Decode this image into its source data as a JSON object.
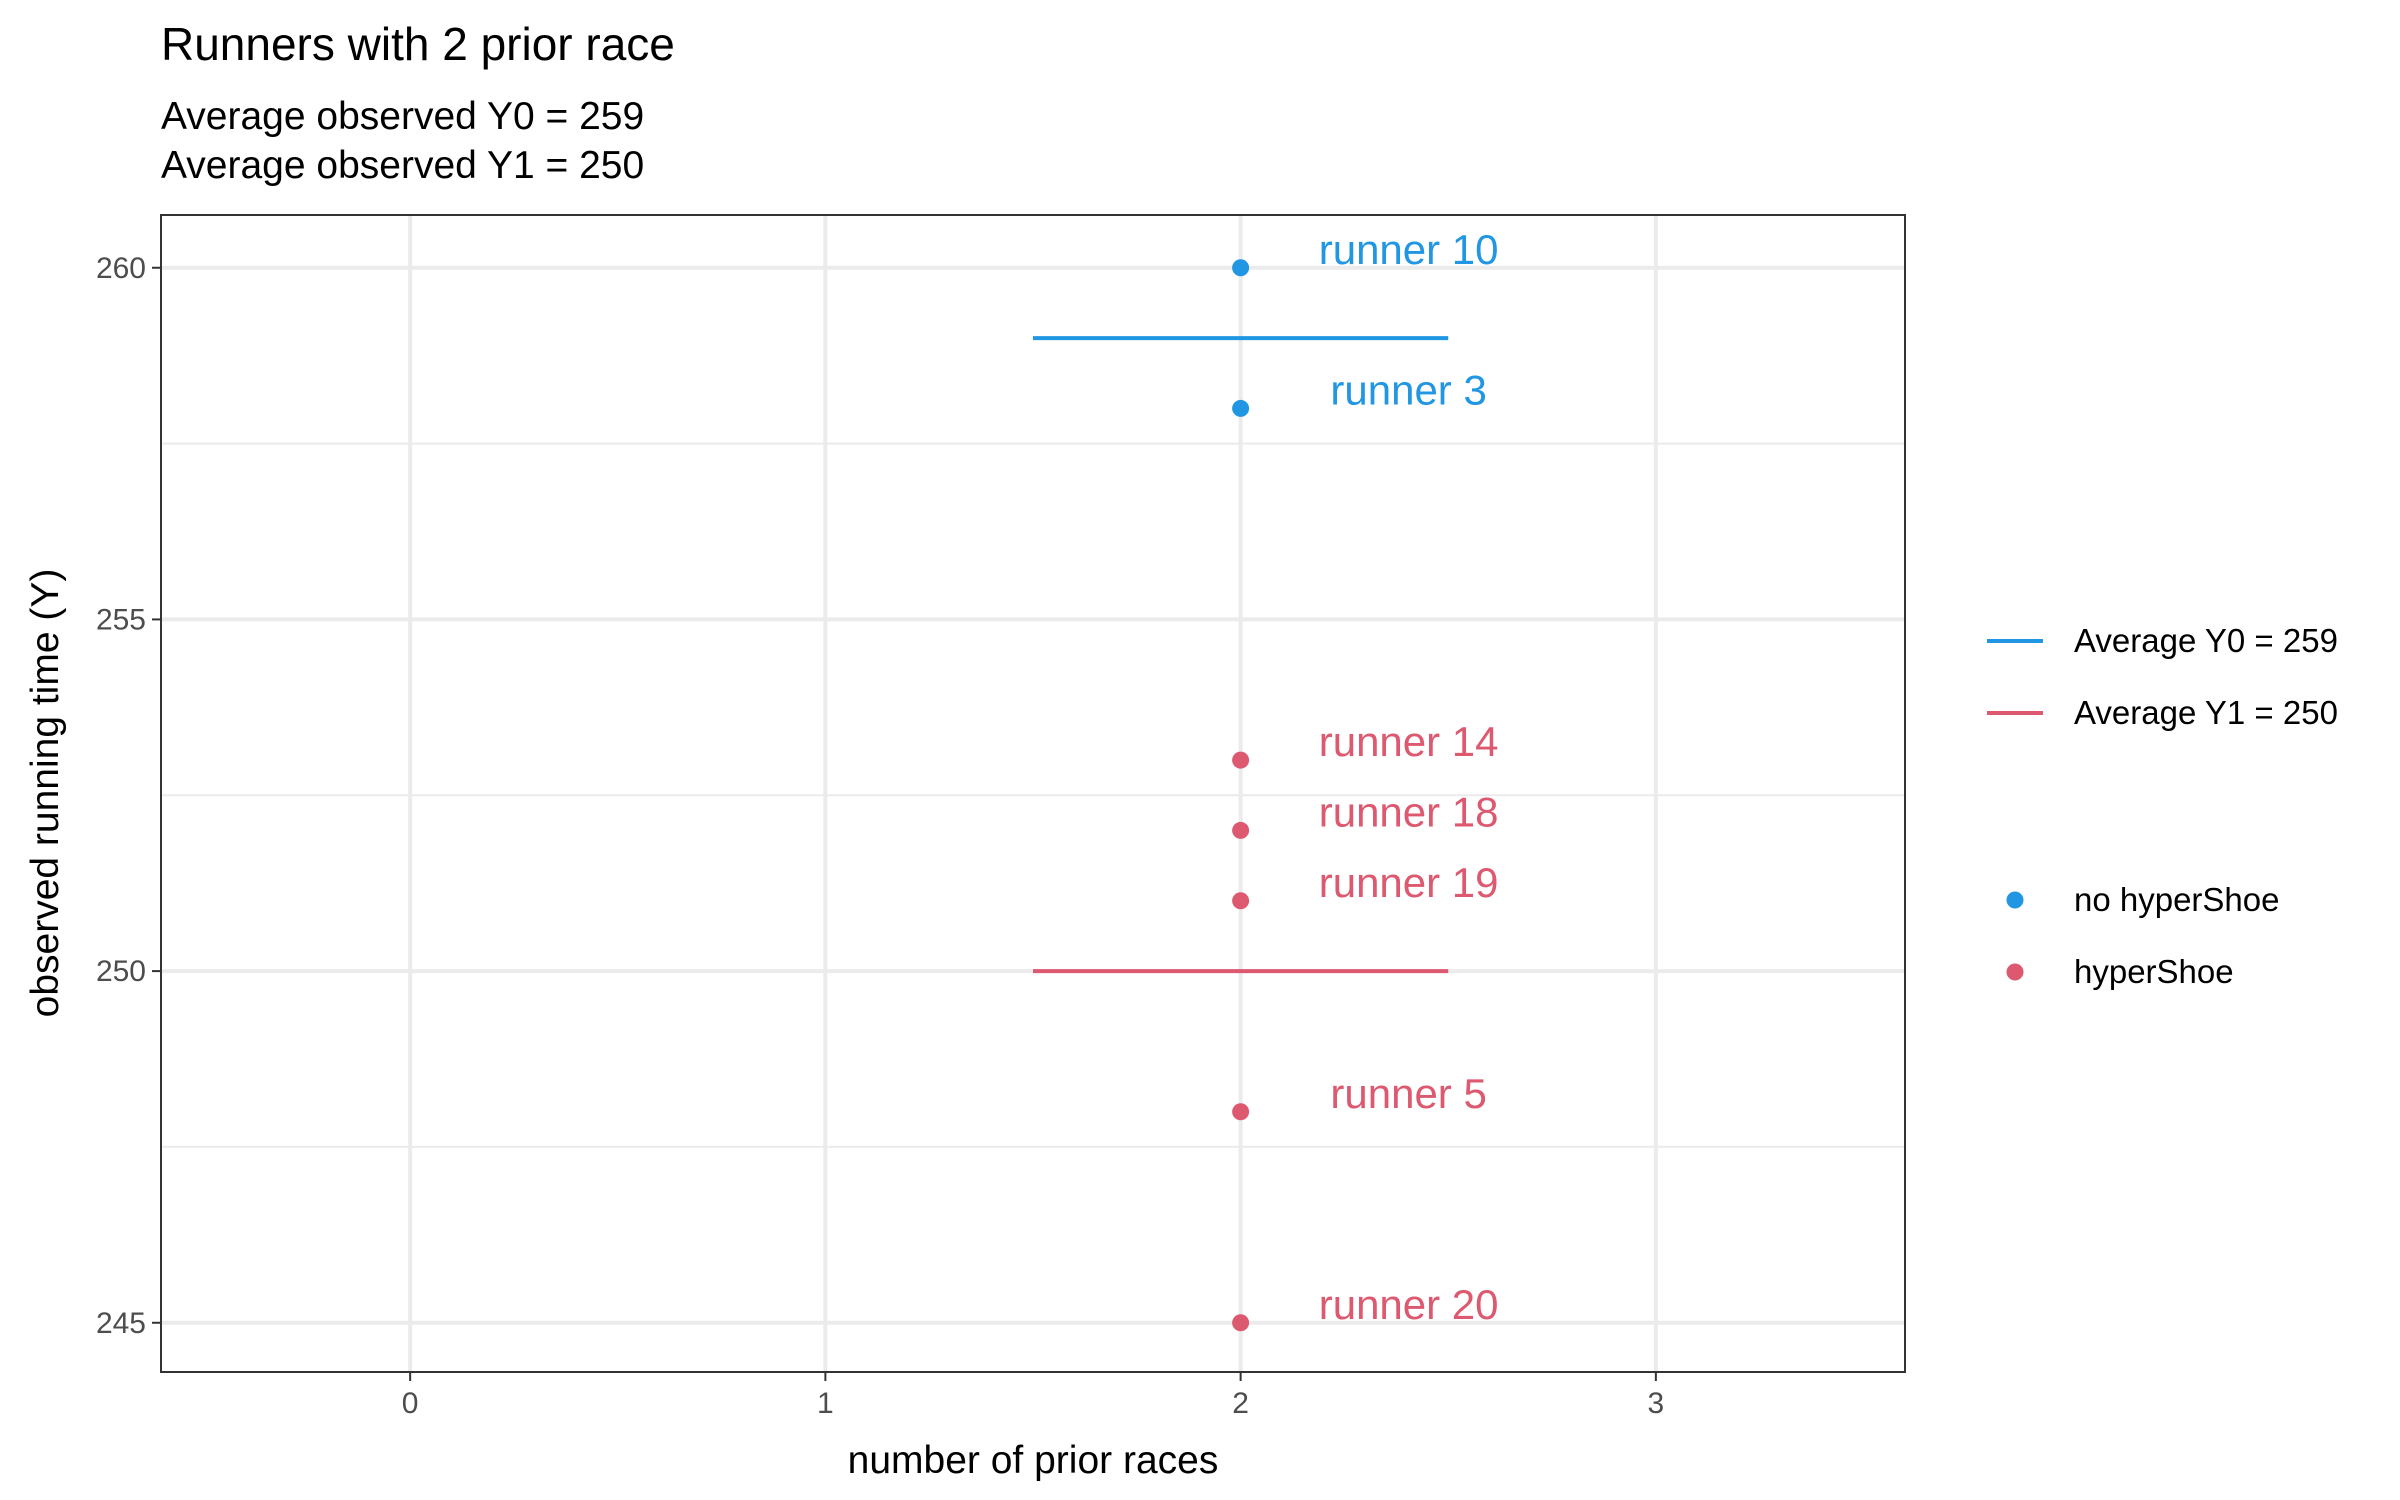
{
  "chart_data": {
    "type": "scatter",
    "title": "Runners with 2 prior race",
    "subtitle_lines": [
      "Average observed Y0 = 259",
      "Average observed Y1 = 250"
    ],
    "xlabel": "number of prior races",
    "ylabel": "observed running time (Y)",
    "xlim": [
      -0.6,
      3.6
    ],
    "ylim": [
      244.3,
      260.75
    ],
    "x_ticks": [
      0,
      1,
      2,
      3
    ],
    "y_ticks": [
      245,
      250,
      255,
      260
    ],
    "y_minor": [
      247.5,
      252.5,
      257.5
    ],
    "x_minor": [],
    "grid": true,
    "colors": {
      "no_hypershoe": "#2196e3",
      "hypershoe": "#dc5970"
    },
    "series": [
      {
        "name": "no hyperShoe",
        "color_key": "no_hypershoe",
        "points": [
          {
            "x": 2,
            "y": 260,
            "label": "runner 10"
          },
          {
            "x": 2,
            "y": 258,
            "label": "runner 3"
          }
        ]
      },
      {
        "name": "hyperShoe",
        "color_key": "hypershoe",
        "points": [
          {
            "x": 2,
            "y": 253,
            "label": "runner 14"
          },
          {
            "x": 2,
            "y": 252,
            "label": "runner 18"
          },
          {
            "x": 2,
            "y": 251,
            "label": "runner 19"
          },
          {
            "x": 2,
            "y": 248,
            "label": "runner 5"
          },
          {
            "x": 2,
            "y": 245,
            "label": "runner 20"
          }
        ]
      }
    ],
    "mean_lines": [
      {
        "name": "Average Y0 = 259",
        "color_key": "no_hypershoe",
        "x_from": 1.5,
        "x_to": 2.5,
        "y": 259
      },
      {
        "name": "Average Y1 = 250",
        "color_key": "hypershoe",
        "x_from": 1.5,
        "x_to": 2.5,
        "y": 250
      }
    ],
    "legend": {
      "position": "right",
      "line_entries": [
        "Average Y0 = 259",
        "Average Y1 = 250"
      ],
      "point_entries": [
        "no hyperShoe",
        "hyperShoe"
      ]
    }
  }
}
